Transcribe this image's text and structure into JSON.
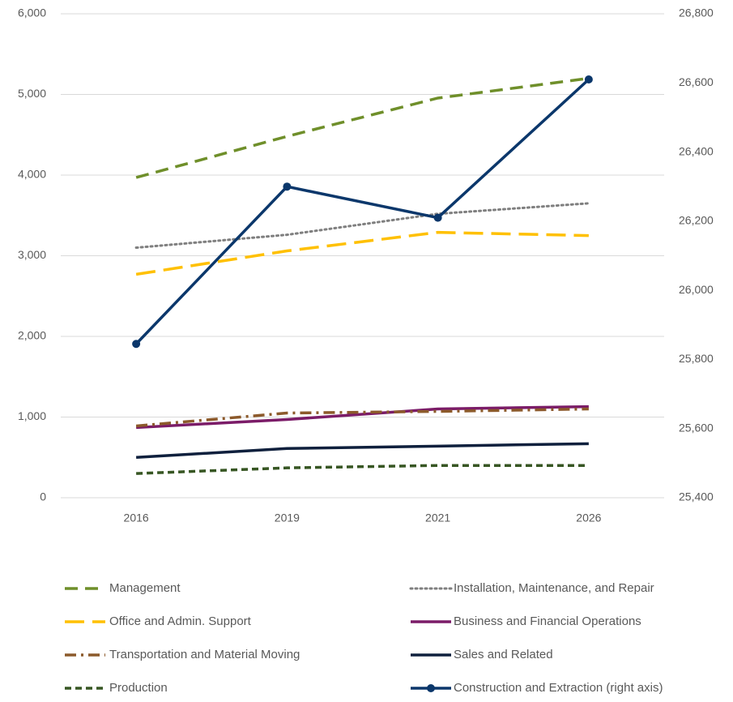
{
  "chart_data": {
    "type": "line",
    "categories": [
      "2016",
      "2019",
      "2021",
      "2026"
    ],
    "ylim": [
      0,
      6000
    ],
    "yticks": [
      0,
      {
        "value": 1000,
        "label": "1,000"
      },
      {
        "value": 2000,
        "label": "2,000"
      },
      {
        "value": 3000,
        "label": "3,000"
      },
      {
        "value": 4000,
        "label": "4,000"
      },
      {
        "value": 5000,
        "label": "5,000"
      },
      {
        "value": 6000,
        "label": "6,000"
      }
    ],
    "y2lim": [
      25400,
      26800
    ],
    "y2ticks": [
      {
        "value": 25400,
        "label": "25,400"
      },
      {
        "value": 25600,
        "label": "25,600"
      },
      {
        "value": 25800,
        "label": "25,800"
      },
      {
        "value": 26000,
        "label": "26,000"
      },
      {
        "value": 26200,
        "label": "26,200"
      },
      {
        "value": 26400,
        "label": "26,400"
      },
      {
        "value": 26600,
        "label": "26,600"
      },
      {
        "value": 26800,
        "label": "26,800"
      }
    ],
    "grid": true,
    "legend": "bottom",
    "series": [
      {
        "name": "Management",
        "color": "#6f8f2a",
        "style": "dash",
        "values": [
          3970,
          4480,
          4955,
          5200
        ]
      },
      {
        "name": "Installation, Maintenance, and Repair",
        "color": "#7f7f7f",
        "style": "dot",
        "values": [
          3100,
          3260,
          3520,
          3650
        ]
      },
      {
        "name": "Office and Admin. Support",
        "color": "#ffc000",
        "style": "longdash",
        "values": [
          2770,
          3060,
          3290,
          3250
        ]
      },
      {
        "name": "Business and Financial Operations",
        "color": "#7b1c68",
        "style": "solid",
        "values": [
          870,
          970,
          1100,
          1130
        ]
      },
      {
        "name": "Transportation and Material Moving",
        "color": "#8c5a2b",
        "style": "dashdot",
        "values": [
          890,
          1050,
          1070,
          1100
        ]
      },
      {
        "name": "Sales and Related",
        "color": "#0f203d",
        "style": "solid",
        "values": [
          500,
          610,
          640,
          670
        ]
      },
      {
        "name": "Production",
        "color": "#375623",
        "style": "shortdash",
        "values": [
          300,
          370,
          400,
          400
        ]
      },
      {
        "name": "Construction and Extraction (right axis)",
        "color": "#0b376b",
        "style": "solid",
        "marker": "circle",
        "axis": "y2",
        "values": [
          25845,
          26300,
          26210,
          26610
        ]
      }
    ]
  }
}
